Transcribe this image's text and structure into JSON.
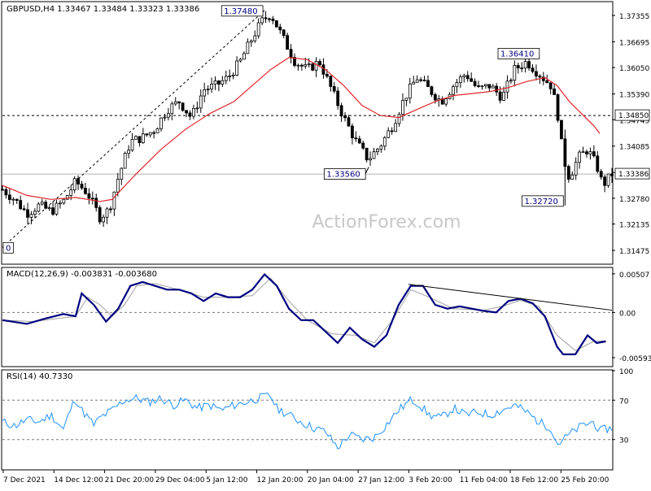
{
  "chart_data": [
    {
      "type": "candlestick",
      "panel": "price",
      "symbol_info": "GBPUSD,H4  1.33467 1.33484 1.33323 1.33386",
      "watermark": "ActionForex.com",
      "y_ticks": [
        "1.37355",
        "1.36695",
        "1.36050",
        "1.35390",
        "1.34745",
        "1.34085",
        "1.33425",
        "1.32780",
        "1.32135",
        "1.31475"
      ],
      "ylim": [
        1.3115,
        1.3768
      ],
      "current_price": "1.33386",
      "level_line": "1.34850",
      "callouts": [
        {
          "label": "1.37480",
          "x": 0.43,
          "price": 1.3748
        },
        {
          "label": "1.33560",
          "x": 0.601,
          "price": 1.3356
        },
        {
          "label": "1.36410",
          "x": 0.847,
          "price": 1.3641
        },
        {
          "label": "1.32720",
          "x": 0.923,
          "price": 1.3272
        },
        {
          "label": "0",
          "x": 0.0,
          "price": 1.3155
        }
      ],
      "trendline": {
        "from": {
          "x": 0.0,
          "price": 1.3155
        },
        "to": {
          "x": 0.43,
          "price": 1.3748
        }
      },
      "price_path": [
        [
          0.0,
          1.33
        ],
        [
          0.02,
          1.3275
        ],
        [
          0.04,
          1.324
        ],
        [
          0.06,
          1.326
        ],
        [
          0.08,
          1.3245
        ],
        [
          0.1,
          1.327
        ],
        [
          0.12,
          1.332
        ],
        [
          0.14,
          1.329
        ],
        [
          0.16,
          1.323
        ],
        [
          0.175,
          1.325
        ],
        [
          0.19,
          1.333
        ],
        [
          0.21,
          1.342
        ],
        [
          0.23,
          1.343
        ],
        [
          0.25,
          1.345
        ],
        [
          0.27,
          1.35
        ],
        [
          0.29,
          1.352
        ],
        [
          0.31,
          1.348
        ],
        [
          0.33,
          1.355
        ],
        [
          0.35,
          1.356
        ],
        [
          0.37,
          1.358
        ],
        [
          0.39,
          1.362
        ],
        [
          0.41,
          1.368
        ],
        [
          0.425,
          1.372
        ],
        [
          0.44,
          1.374
        ],
        [
          0.46,
          1.368
        ],
        [
          0.48,
          1.362
        ],
        [
          0.5,
          1.36
        ],
        [
          0.52,
          1.362
        ],
        [
          0.54,
          1.355
        ],
        [
          0.56,
          1.348
        ],
        [
          0.58,
          1.342
        ],
        [
          0.6,
          1.3375
        ],
        [
          0.62,
          1.341
        ],
        [
          0.64,
          1.346
        ],
        [
          0.66,
          1.353
        ],
        [
          0.68,
          1.358
        ],
        [
          0.7,
          1.355
        ],
        [
          0.72,
          1.352
        ],
        [
          0.74,
          1.356
        ],
        [
          0.76,
          1.359
        ],
        [
          0.78,
          1.355
        ],
        [
          0.8,
          1.356
        ],
        [
          0.82,
          1.353
        ],
        [
          0.84,
          1.36
        ],
        [
          0.86,
          1.362
        ],
        [
          0.88,
          1.359
        ],
        [
          0.9,
          1.356
        ],
        [
          0.91,
          1.35
        ],
        [
          0.92,
          1.338
        ],
        [
          0.93,
          1.333
        ],
        [
          0.945,
          1.338
        ],
        [
          0.96,
          1.34
        ],
        [
          0.975,
          1.336
        ],
        [
          0.985,
          1.331
        ],
        [
          1.0,
          1.3339
        ]
      ],
      "ma_path": [
        [
          0.0,
          1.331
        ],
        [
          0.04,
          1.3285
        ],
        [
          0.08,
          1.3275
        ],
        [
          0.12,
          1.328
        ],
        [
          0.16,
          1.327
        ],
        [
          0.18,
          1.3275
        ],
        [
          0.22,
          1.334
        ],
        [
          0.26,
          1.34
        ],
        [
          0.3,
          1.345
        ],
        [
          0.34,
          1.349
        ],
        [
          0.38,
          1.352
        ],
        [
          0.41,
          1.356
        ],
        [
          0.44,
          1.36
        ],
        [
          0.47,
          1.363
        ],
        [
          0.5,
          1.3625
        ],
        [
          0.53,
          1.36
        ],
        [
          0.56,
          1.356
        ],
        [
          0.59,
          1.351
        ],
        [
          0.62,
          1.3485
        ],
        [
          0.65,
          1.348
        ],
        [
          0.68,
          1.35
        ],
        [
          0.71,
          1.352
        ],
        [
          0.74,
          1.3535
        ],
        [
          0.77,
          1.354
        ],
        [
          0.8,
          1.3545
        ],
        [
          0.83,
          1.3555
        ],
        [
          0.86,
          1.357
        ],
        [
          0.89,
          1.358
        ],
        [
          0.91,
          1.356
        ],
        [
          0.93,
          1.352
        ],
        [
          0.95,
          1.349
        ],
        [
          0.97,
          1.346
        ],
        [
          0.98,
          1.344
        ]
      ]
    },
    {
      "type": "line",
      "panel": "macd",
      "title": "MACD(12,26,9) -0.003831 -0.003680",
      "y_ticks": [
        "0.00507",
        "0.00",
        "-0.00593"
      ],
      "ylim": [
        -0.007,
        0.0058
      ],
      "macd": [
        [
          0.0,
          -0.001
        ],
        [
          0.04,
          -0.0015
        ],
        [
          0.07,
          -0.0008
        ],
        [
          0.1,
          -0.0002
        ],
        [
          0.12,
          -0.0005
        ],
        [
          0.13,
          0.0025
        ],
        [
          0.15,
          0.001
        ],
        [
          0.17,
          -0.0012
        ],
        [
          0.19,
          0.0005
        ],
        [
          0.21,
          0.0035
        ],
        [
          0.23,
          0.004
        ],
        [
          0.25,
          0.0035
        ],
        [
          0.27,
          0.003
        ],
        [
          0.29,
          0.003
        ],
        [
          0.31,
          0.0025
        ],
        [
          0.33,
          0.0015
        ],
        [
          0.35,
          0.0025
        ],
        [
          0.37,
          0.002
        ],
        [
          0.39,
          0.002
        ],
        [
          0.41,
          0.003
        ],
        [
          0.43,
          0.005
        ],
        [
          0.45,
          0.0035
        ],
        [
          0.47,
          0.0005
        ],
        [
          0.49,
          -0.001
        ],
        [
          0.51,
          -0.001
        ],
        [
          0.53,
          -0.0025
        ],
        [
          0.55,
          -0.004
        ],
        [
          0.57,
          -0.002
        ],
        [
          0.59,
          -0.0035
        ],
        [
          0.61,
          -0.0045
        ],
        [
          0.63,
          -0.003
        ],
        [
          0.65,
          0.001
        ],
        [
          0.67,
          0.0035
        ],
        [
          0.69,
          0.0035
        ],
        [
          0.71,
          0.001
        ],
        [
          0.73,
          0.0005
        ],
        [
          0.75,
          0.0008
        ],
        [
          0.77,
          0.0005
        ],
        [
          0.79,
          0.0002
        ],
        [
          0.81,
          0.0
        ],
        [
          0.83,
          0.0015
        ],
        [
          0.85,
          0.0018
        ],
        [
          0.87,
          0.0012
        ],
        [
          0.89,
          -0.0005
        ],
        [
          0.91,
          -0.0045
        ],
        [
          0.92,
          -0.0055
        ],
        [
          0.94,
          -0.0055
        ],
        [
          0.96,
          -0.003
        ],
        [
          0.975,
          -0.004
        ],
        [
          0.99,
          -0.0038
        ]
      ],
      "signal": [
        [
          0.0,
          -0.001
        ],
        [
          0.05,
          -0.0012
        ],
        [
          0.09,
          -0.0008
        ],
        [
          0.12,
          -0.0005
        ],
        [
          0.14,
          0.002
        ],
        [
          0.16,
          0.001
        ],
        [
          0.18,
          -0.0005
        ],
        [
          0.2,
          0.001
        ],
        [
          0.22,
          0.0035
        ],
        [
          0.25,
          0.0038
        ],
        [
          0.29,
          0.003
        ],
        [
          0.33,
          0.002
        ],
        [
          0.37,
          0.002
        ],
        [
          0.41,
          0.0022
        ],
        [
          0.44,
          0.0045
        ],
        [
          0.47,
          0.0015
        ],
        [
          0.5,
          -0.001
        ],
        [
          0.54,
          -0.0028
        ],
        [
          0.58,
          -0.003
        ],
        [
          0.61,
          -0.004
        ],
        [
          0.64,
          -0.001
        ],
        [
          0.67,
          0.003
        ],
        [
          0.7,
          0.002
        ],
        [
          0.74,
          0.0005
        ],
        [
          0.79,
          0.0003
        ],
        [
          0.82,
          0.0008
        ],
        [
          0.85,
          0.0016
        ],
        [
          0.88,
          0.0008
        ],
        [
          0.91,
          -0.003
        ],
        [
          0.94,
          -0.005
        ],
        [
          0.97,
          -0.0038
        ],
        [
          0.99,
          -0.0037
        ]
      ],
      "trendline": {
        "from": {
          "x": 0.666,
          "value": 0.0037
        },
        "to": {
          "x": 1.0,
          "value": 0.0003
        }
      }
    },
    {
      "type": "line",
      "panel": "rsi",
      "title": "RSI(14) 40.7330",
      "y_ticks": [
        "100",
        "70",
        "30"
      ],
      "ylim": [
        0,
        100
      ],
      "levels": [
        70,
        30
      ],
      "rsi": [
        [
          0.0,
          48
        ],
        [
          0.02,
          44
        ],
        [
          0.04,
          50
        ],
        [
          0.06,
          48
        ],
        [
          0.08,
          55
        ],
        [
          0.1,
          40
        ],
        [
          0.11,
          58
        ],
        [
          0.12,
          72
        ],
        [
          0.13,
          60
        ],
        [
          0.15,
          45
        ],
        [
          0.16,
          52
        ],
        [
          0.18,
          60
        ],
        [
          0.2,
          70
        ],
        [
          0.22,
          72
        ],
        [
          0.24,
          68
        ],
        [
          0.26,
          72
        ],
        [
          0.28,
          65
        ],
        [
          0.3,
          70
        ],
        [
          0.32,
          62
        ],
        [
          0.34,
          65
        ],
        [
          0.36,
          60
        ],
        [
          0.38,
          65
        ],
        [
          0.4,
          68
        ],
        [
          0.42,
          72
        ],
        [
          0.44,
          75
        ],
        [
          0.45,
          62
        ],
        [
          0.47,
          55
        ],
        [
          0.49,
          48
        ],
        [
          0.51,
          42
        ],
        [
          0.53,
          38
        ],
        [
          0.55,
          22
        ],
        [
          0.57,
          35
        ],
        [
          0.59,
          30
        ],
        [
          0.61,
          32
        ],
        [
          0.63,
          45
        ],
        [
          0.65,
          60
        ],
        [
          0.67,
          70
        ],
        [
          0.68,
          68
        ],
        [
          0.7,
          55
        ],
        [
          0.72,
          52
        ],
        [
          0.74,
          62
        ],
        [
          0.76,
          55
        ],
        [
          0.78,
          58
        ],
        [
          0.8,
          55
        ],
        [
          0.82,
          60
        ],
        [
          0.84,
          65
        ],
        [
          0.86,
          58
        ],
        [
          0.88,
          48
        ],
        [
          0.9,
          42
        ],
        [
          0.91,
          25
        ],
        [
          0.93,
          35
        ],
        [
          0.95,
          44
        ],
        [
          0.97,
          48
        ],
        [
          0.98,
          38
        ],
        [
          0.99,
          41
        ]
      ]
    }
  ],
  "x_axis": {
    "labels": [
      "7 Dec 2021",
      "14 Dec 12:00",
      "21 Dec 20:00",
      "29 Dec 04:00",
      "5 Jan 12:00",
      "12 Jan 20:00",
      "20 Jan 04:00",
      "27 Jan 12:00",
      "3 Feb 20:00",
      "11 Feb 04:00",
      "18 Feb 12:00",
      "25 Feb 20:00"
    ]
  },
  "colors": {
    "candle": "#000000",
    "ma": "#e0262a",
    "macd": "#000080",
    "signal": "#a0a0a0",
    "rsi": "#1e90ff",
    "callout_text": "#000080",
    "grid_dash": "#7a7a7a",
    "watermark": "#c8c8c8"
  }
}
